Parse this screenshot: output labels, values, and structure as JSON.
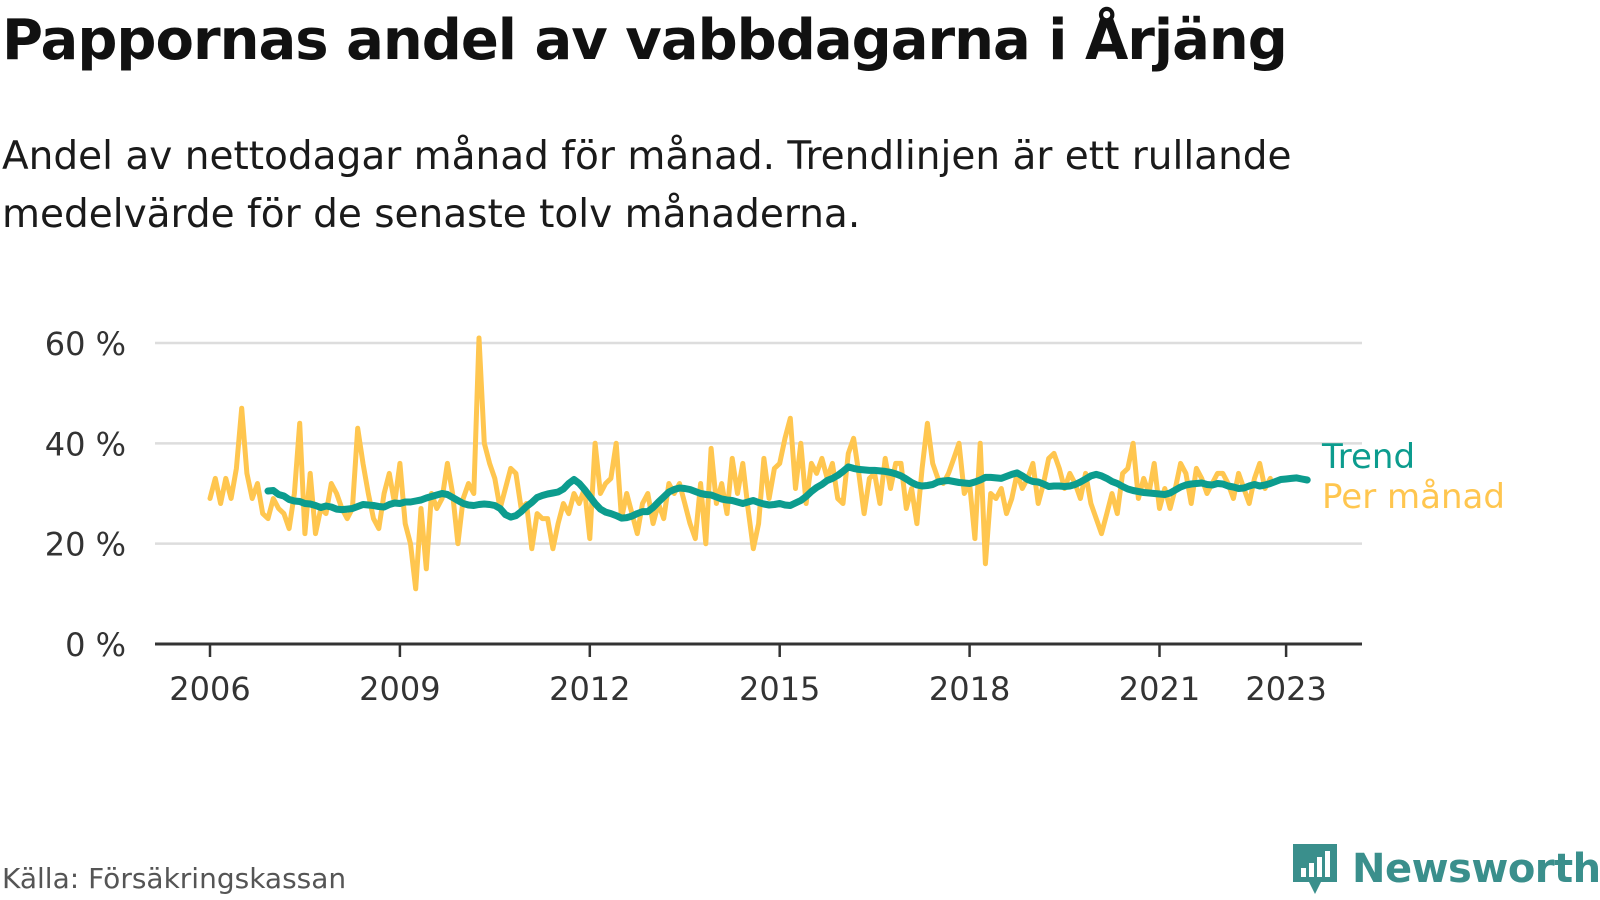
{
  "header": {
    "title": "Pappornas andel av vabbdagarna i Årjäng",
    "subtitle_line1": "Andel av nettodagar månad för månad. Trendlinjen är ett rullande",
    "subtitle_line2": "medelvärde för de senaste tolv månaderna."
  },
  "footer": {
    "source": "Källa: Försäkringskassan",
    "brand": "Newsworthy"
  },
  "colors": {
    "trend": "#0c9c8e",
    "monthly": "#ffc64f",
    "grid": "#dddddd",
    "axis": "#333333",
    "brand": "#3a8f8c"
  },
  "chart_data": {
    "type": "line",
    "title": "Pappornas andel av vabbdagarna i Årjäng",
    "ylabel": "",
    "xlabel": "",
    "y_unit": "%",
    "ylim": [
      0,
      60
    ],
    "y_ticks": [
      0,
      20,
      40,
      60
    ],
    "y_tick_labels": [
      "0 %",
      "20 %",
      "40 %",
      "60 %"
    ],
    "x_ticks": [
      2006,
      2009,
      2012,
      2015,
      2018,
      2021,
      2023
    ],
    "grid": true,
    "legend": "right, at line end",
    "series": [
      {
        "name": "Per månad",
        "color": "#ffc64f",
        "start": "2006-01",
        "values": [
          29,
          33,
          28,
          33,
          29,
          35,
          47,
          34,
          29,
          32,
          26,
          25,
          29,
          27,
          26,
          23,
          30,
          44,
          22,
          34,
          22,
          27,
          26,
          32,
          30,
          27,
          25,
          27,
          43,
          36,
          30,
          25,
          23,
          30,
          34,
          28,
          36,
          24,
          20,
          11,
          27,
          15,
          30,
          27,
          29,
          36,
          30,
          20,
          29,
          32,
          30,
          61,
          40,
          36,
          33,
          27,
          31,
          35,
          34,
          27,
          28,
          19,
          26,
          25,
          25,
          19,
          24,
          28,
          26,
          30,
          28,
          31,
          21,
          40,
          30,
          32,
          33,
          40,
          25,
          30,
          26,
          22,
          28,
          30,
          24,
          28,
          25,
          32,
          30,
          32,
          28,
          24,
          21,
          32,
          20,
          39,
          28,
          32,
          26,
          37,
          30,
          36,
          27,
          19,
          24,
          37,
          29,
          35,
          36,
          41,
          45,
          31,
          40,
          28,
          36,
          34,
          37,
          33,
          36,
          29,
          28,
          38,
          41,
          34,
          26,
          33,
          34,
          28,
          37,
          31,
          36,
          36,
          27,
          31,
          24,
          35,
          44,
          36,
          33,
          32,
          34,
          37,
          40,
          30,
          32,
          21,
          40,
          16,
          30,
          29,
          31,
          26,
          29,
          34,
          31,
          33,
          36,
          28,
          32,
          37,
          38,
          35,
          31,
          34,
          32,
          29,
          34,
          28,
          25,
          22,
          26,
          30,
          26,
          34,
          35,
          40,
          29,
          33,
          30,
          36,
          27,
          31,
          27,
          31,
          36,
          34,
          28,
          35,
          33,
          30,
          32,
          34,
          34,
          32,
          29,
          34,
          31,
          28,
          33,
          36,
          31,
          33
        ]
      },
      {
        "name": "Trend",
        "color": "#0c9c8e",
        "start": "2006-12",
        "values": [
          30.5,
          30.6,
          29.8,
          29.5,
          28.8,
          28.5,
          28.4,
          28.0,
          27.9,
          27.6,
          27.2,
          27.5,
          27.3,
          26.9,
          26.8,
          26.9,
          27.0,
          27.4,
          27.8,
          27.7,
          27.6,
          27.4,
          27.3,
          27.8,
          28.1,
          28.0,
          28.3,
          28.3,
          28.5,
          28.7,
          29.1,
          29.4,
          29.7,
          30.0,
          29.8,
          29.2,
          28.6,
          28.0,
          27.7,
          27.6,
          27.8,
          27.9,
          27.8,
          27.6,
          27.0,
          25.8,
          25.3,
          25.6,
          26.4,
          27.4,
          28.2,
          29.2,
          29.6,
          29.9,
          30.1,
          30.3,
          30.9,
          32.0,
          32.8,
          32.0,
          30.8,
          29.4,
          28.0,
          26.9,
          26.3,
          26.0,
          25.6,
          25.1,
          25.2,
          25.5,
          26.0,
          26.4,
          26.4,
          27.2,
          28.3,
          29.3,
          30.3,
          30.8,
          31.1,
          31.0,
          30.8,
          30.4,
          30.0,
          29.8,
          29.7,
          29.3,
          28.9,
          28.7,
          28.6,
          28.3,
          28.0,
          28.3,
          28.6,
          28.2,
          27.9,
          27.7,
          27.8,
          28.0,
          27.7,
          27.6,
          28.1,
          28.6,
          29.4,
          30.4,
          31.2,
          31.8,
          32.6,
          33.0,
          33.6,
          34.4,
          35.3,
          35.0,
          34.8,
          34.7,
          34.6,
          34.6,
          34.5,
          34.4,
          34.2,
          33.9,
          33.5,
          32.9,
          32.2,
          31.7,
          31.5,
          31.6,
          31.8,
          32.3,
          32.5,
          32.6,
          32.4,
          32.2,
          32.1,
          32.0,
          32.3,
          32.7,
          33.2,
          33.2,
          33.1,
          33.0,
          33.4,
          33.8,
          34.1,
          33.5,
          32.8,
          32.4,
          32.3,
          31.9,
          31.4,
          31.5,
          31.5,
          31.4,
          31.5,
          31.8,
          32.3,
          32.9,
          33.5,
          33.8,
          33.5,
          33.0,
          32.4,
          32.0,
          31.4,
          30.9,
          30.6,
          30.4,
          30.2,
          30.1,
          30.0,
          29.9,
          29.8,
          30.1,
          30.7,
          31.3,
          31.7,
          31.9,
          32.0,
          32.1,
          31.8,
          31.7,
          32.0,
          31.9,
          31.5,
          31.3,
          31.0,
          31.1,
          31.5,
          31.8,
          31.5,
          31.7,
          32.0,
          32.4,
          32.8,
          32.9,
          33.0,
          33.1,
          32.9,
          32.7
        ]
      }
    ]
  }
}
